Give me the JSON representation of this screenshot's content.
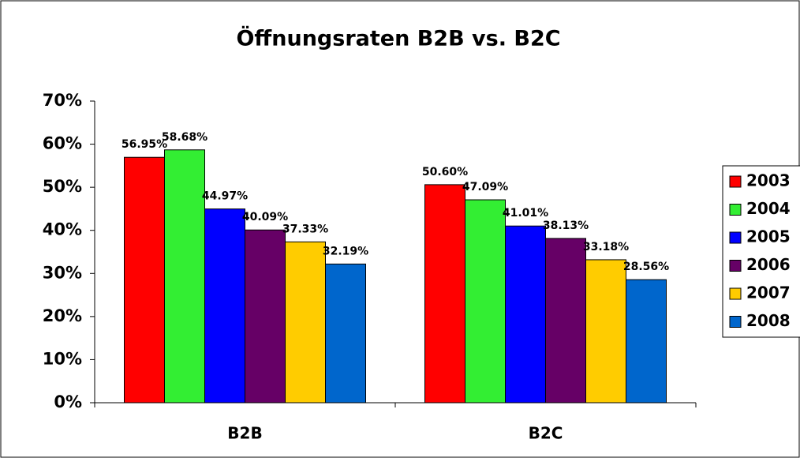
{
  "chart_data": {
    "type": "bar",
    "title": "Öffnungsraten B2B vs. B2C",
    "categories": [
      "B2B",
      "B2C"
    ],
    "series": [
      {
        "name": "2003",
        "color": "#ff0000",
        "values": [
          56.95,
          50.6
        ],
        "value_labels": [
          "56.95%",
          "50.60%"
        ]
      },
      {
        "name": "2004",
        "color": "#33ee33",
        "values": [
          58.68,
          47.09
        ],
        "value_labels": [
          "58.68%",
          "47.09%"
        ]
      },
      {
        "name": "2005",
        "color": "#0000ff",
        "values": [
          44.97,
          41.01
        ],
        "value_labels": [
          "44.97%",
          "41.01%"
        ]
      },
      {
        "name": "2006",
        "color": "#660066",
        "values": [
          40.09,
          38.13
        ],
        "value_labels": [
          "40.09%",
          "38.13%"
        ]
      },
      {
        "name": "2007",
        "color": "#ffcc00",
        "values": [
          37.33,
          33.18
        ],
        "value_labels": [
          "37.33%",
          "33.18%"
        ]
      },
      {
        "name": "2008",
        "color": "#0066cc",
        "values": [
          32.19,
          28.56
        ],
        "value_labels": [
          "32.19%",
          "28.56%"
        ]
      }
    ],
    "ylim": [
      0,
      70
    ],
    "yticks": [
      {
        "value": 0,
        "label": "0%"
      },
      {
        "value": 10,
        "label": "10%"
      },
      {
        "value": 20,
        "label": "20%"
      },
      {
        "value": 30,
        "label": "30%"
      },
      {
        "value": 40,
        "label": "40%"
      },
      {
        "value": 50,
        "label": "50%"
      },
      {
        "value": 60,
        "label": "60%"
      },
      {
        "value": 70,
        "label": "70%"
      }
    ],
    "legend": "right"
  }
}
